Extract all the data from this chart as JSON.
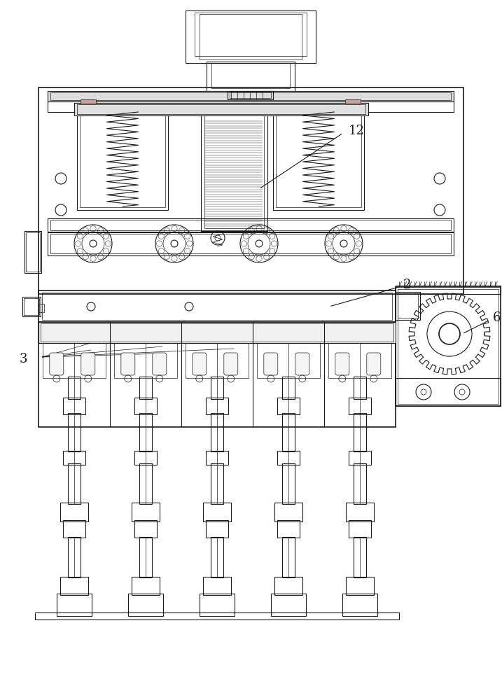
{
  "bg_color": "#ffffff",
  "line_color": "#1a1a1a",
  "lw": 0.8,
  "tlw": 0.5,
  "thk": 1.2,
  "fs": 13,
  "num_cutters": 5
}
